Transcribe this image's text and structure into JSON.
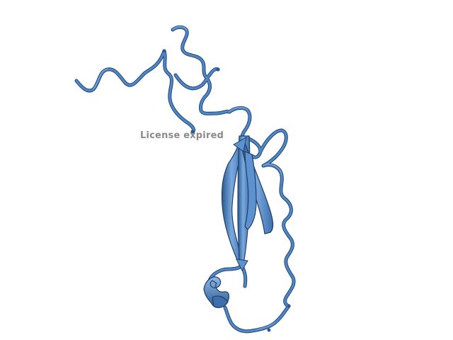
{
  "viewer": {
    "watermark_text": "License expired",
    "background_color": "#ffffff",
    "ribbon_color": "#4f86c6",
    "ribbon_shadow_color": "#1f3f66",
    "ribbon_highlight_color": "#8fb8e6"
  },
  "molecule": {
    "representation": "cartoon"
  }
}
